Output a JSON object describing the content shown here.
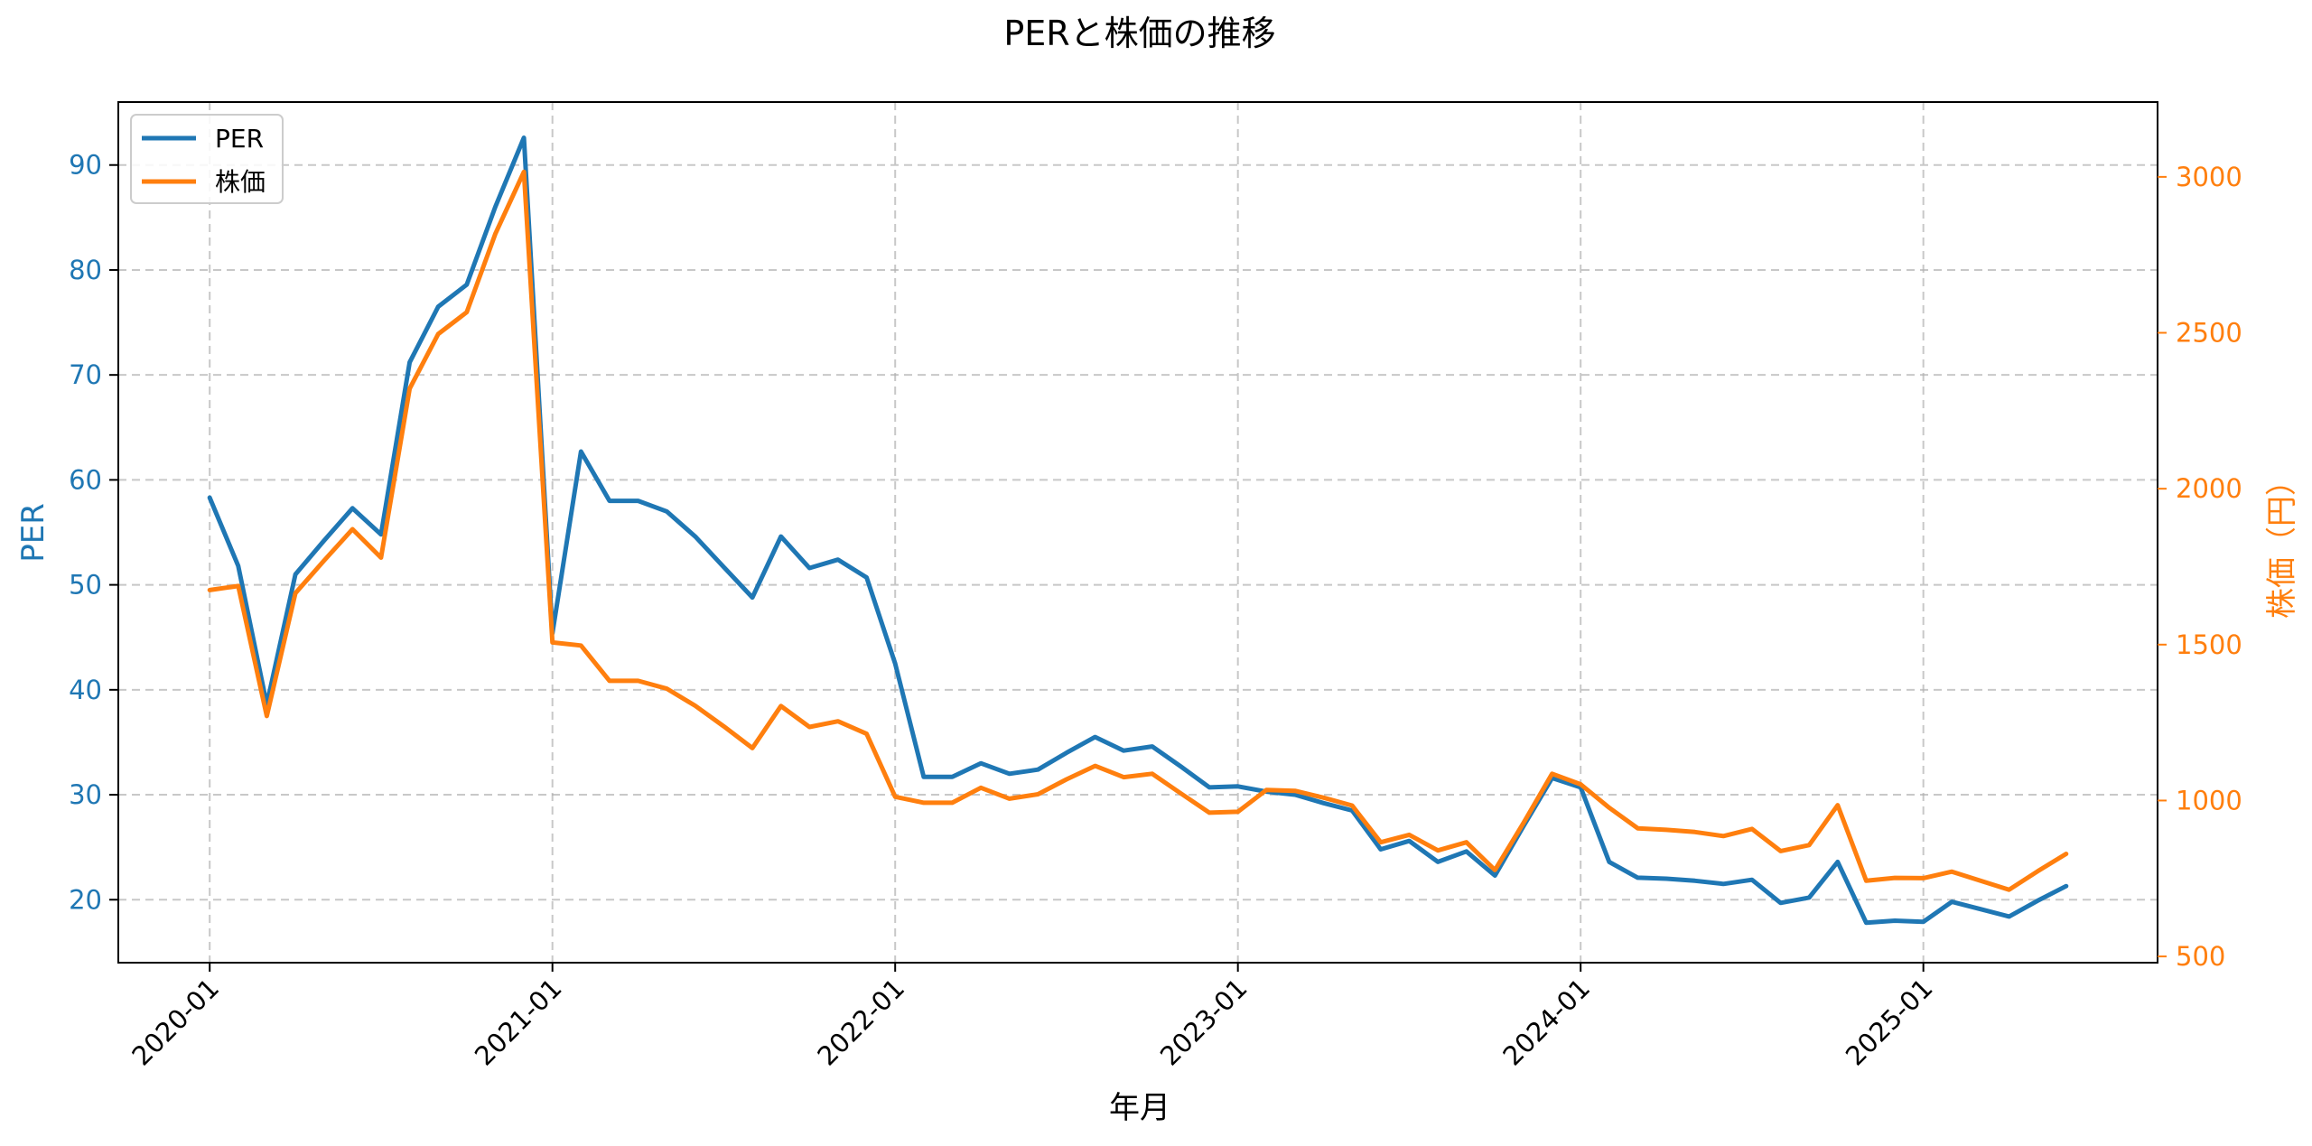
{
  "colors": {
    "per": "#1f77b4",
    "price": "#ff7f0e",
    "grid": "#b0b0b0",
    "axis": "#000000"
  },
  "chart_data": {
    "type": "line",
    "title": "PERと株価の推移",
    "xlabel": "年月",
    "ylabel_left": "PER",
    "ylabel_right": "株価（円）",
    "grid": true,
    "legend": "top-left",
    "x_tick_labels": [
      "2020-01",
      "2021-01",
      "2022-01",
      "2023-01",
      "2024-01",
      "2025-01"
    ],
    "x": [
      "2020-01",
      "2020-02",
      "2020-03",
      "2020-04",
      "2020-05",
      "2020-06",
      "2020-07",
      "2020-08",
      "2020-09",
      "2020-10",
      "2020-11",
      "2020-12",
      "2021-01",
      "2021-02",
      "2021-03",
      "2021-04",
      "2021-05",
      "2021-06",
      "2021-07",
      "2021-08",
      "2021-09",
      "2021-10",
      "2021-11",
      "2021-12",
      "2022-01",
      "2022-02",
      "2022-03",
      "2022-04",
      "2022-05",
      "2022-06",
      "2022-07",
      "2022-08",
      "2022-09",
      "2022-10",
      "2022-11",
      "2022-12",
      "2023-01",
      "2023-02",
      "2023-03",
      "2023-04",
      "2023-05",
      "2023-06",
      "2023-07",
      "2023-08",
      "2023-09",
      "2023-10",
      "2023-11",
      "2023-12",
      "2024-01",
      "2024-02",
      "2024-03",
      "2024-04",
      "2024-05",
      "2024-06",
      "2024-07",
      "2024-08",
      "2024-09",
      "2024-10",
      "2024-11",
      "2024-12",
      "2025-01",
      "2025-02",
      "2025-03",
      "2025-04",
      "2025-05",
      "2025-06"
    ],
    "x_range": [
      -3.2,
      68.2
    ],
    "series": [
      {
        "name": "PER",
        "axis": "left",
        "ylim": [
          14,
          96
        ],
        "yticks": [
          20,
          30,
          40,
          50,
          60,
          70,
          80,
          90
        ],
        "values": [
          58.3,
          51.8,
          38.6,
          51.0,
          54.2,
          57.3,
          54.8,
          71.2,
          76.5,
          78.6,
          86.0,
          92.6,
          45.4,
          62.7,
          58.0,
          58.0,
          57.0,
          54.6,
          51.7,
          48.8,
          54.6,
          51.6,
          52.4,
          50.7,
          42.5,
          31.7,
          31.7,
          33.0,
          32.0,
          32.4,
          34.0,
          35.5,
          34.2,
          34.6,
          32.7,
          30.7,
          30.8,
          30.3,
          30.0,
          29.2,
          28.5,
          24.8,
          25.6,
          23.6,
          24.6,
          22.3,
          27.0,
          31.6,
          30.7,
          23.6,
          22.1,
          22.0,
          21.8,
          21.5,
          21.9,
          19.7,
          20.2,
          23.6,
          17.8,
          18.0,
          17.9,
          19.8,
          19.1,
          18.4,
          19.9,
          21.3
        ]
      },
      {
        "name": "株価",
        "axis": "right",
        "ylim": [
          480,
          3240
        ],
        "yticks": [
          500,
          1000,
          1500,
          2000,
          2500,
          3000
        ],
        "values": [
          1675,
          1688,
          1271,
          1665,
          1769,
          1870,
          1779,
          2321,
          2496,
          2566,
          2817,
          3016,
          1507,
          1497,
          1384,
          1384,
          1359,
          1304,
          1238,
          1168,
          1303,
          1236,
          1254,
          1214,
          1012,
          993,
          993,
          1041,
          1006,
          1020,
          1068,
          1111,
          1075,
          1086,
          1023,
          961,
          964,
          1034,
          1031,
          1009,
          984,
          866,
          890,
          840,
          866,
          777,
          928,
          1086,
          1052,
          977,
          911,
          906,
          899,
          886,
          909,
          838,
          857,
          985,
          743,
          752,
          751,
          772,
          743,
          714,
          773,
          829
        ]
      }
    ]
  }
}
